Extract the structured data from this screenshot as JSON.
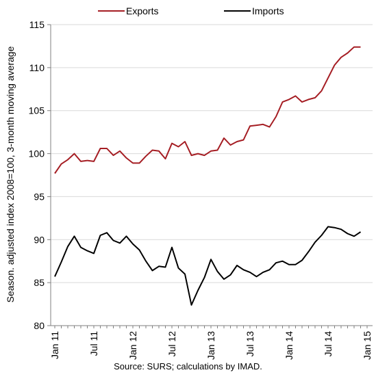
{
  "colors": {
    "exports": "#a51d23",
    "imports": "#000000",
    "grid": "#d9d9d9",
    "axis": "#7f7f7f"
  },
  "chart_data": {
    "type": "line",
    "title": "",
    "xlabel": "",
    "ylabel": "Season. adjusted index 2008=100, 3-month moving average",
    "ylim": [
      80,
      115
    ],
    "yticks": [
      80,
      85,
      90,
      95,
      100,
      105,
      110,
      115
    ],
    "grid": "horizontal",
    "legend_position": "top",
    "x": [
      "Jan 11",
      "Feb 11",
      "Mar 11",
      "Apr 11",
      "May 11",
      "Jun 11",
      "Jul 11",
      "Aug 11",
      "Sep 11",
      "Oct 11",
      "Nov 11",
      "Dec 11",
      "Jan 12",
      "Feb 12",
      "Mar 12",
      "Apr 12",
      "May 12",
      "Jun 12",
      "Jul 12",
      "Aug 12",
      "Sep 12",
      "Oct 12",
      "Nov 12",
      "Dec 12",
      "Jan 13",
      "Feb 13",
      "Mar 13",
      "Apr 13",
      "May 13",
      "Jun 13",
      "Jul 13",
      "Aug 13",
      "Sep 13",
      "Oct 13",
      "Nov 13",
      "Dec 13",
      "Jan 14",
      "Feb 14",
      "Mar 14",
      "Apr 14",
      "May 14",
      "Jun 14",
      "Jul 14",
      "Aug 14",
      "Sep 14",
      "Oct 14",
      "Nov 14",
      "Dec 14"
    ],
    "x_tick_labels": [
      {
        "label": "Jan 11",
        "index": 0
      },
      {
        "label": "Jul 11",
        "index": 6
      },
      {
        "label": "Jan 12",
        "index": 12
      },
      {
        "label": "Jul 12",
        "index": 18
      },
      {
        "label": "Jan 13",
        "index": 24
      },
      {
        "label": "Jul 13",
        "index": 30
      },
      {
        "label": "Jan 14",
        "index": 36
      },
      {
        "label": "Jul 14",
        "index": 42
      },
      {
        "label": "Jan 15",
        "index": 48
      }
    ],
    "series": [
      {
        "name": "Exports",
        "values": [
          97.7,
          98.8,
          99.3,
          100.0,
          99.1,
          99.2,
          99.1,
          100.6,
          100.6,
          99.8,
          100.3,
          99.5,
          98.9,
          98.9,
          99.7,
          100.4,
          100.3,
          99.4,
          101.2,
          100.8,
          101.4,
          99.8,
          100.0,
          99.8,
          100.3,
          100.4,
          101.8,
          101.0,
          101.4,
          101.6,
          103.2,
          103.3,
          103.4,
          103.1,
          104.3,
          106.0,
          106.3,
          106.7,
          106.0,
          106.3,
          106.5,
          107.3,
          108.8,
          110.3,
          111.2,
          111.7,
          112.4,
          112.4
        ]
      },
      {
        "name": "Imports",
        "values": [
          85.7,
          87.4,
          89.2,
          90.4,
          89.1,
          88.7,
          88.4,
          90.5,
          90.8,
          89.9,
          89.6,
          90.4,
          89.5,
          88.8,
          87.5,
          86.4,
          86.9,
          86.8,
          89.1,
          86.7,
          86.0,
          82.4,
          84.1,
          85.6,
          87.7,
          86.3,
          85.4,
          85.9,
          87.0,
          86.5,
          86.2,
          85.7,
          86.2,
          86.5,
          87.3,
          87.5,
          87.1,
          87.1,
          87.6,
          88.6,
          89.7,
          90.5,
          91.5,
          91.4,
          91.2,
          90.7,
          90.4,
          90.9
        ]
      }
    ],
    "source": "Source: SURS; calculations by IMAD."
  }
}
